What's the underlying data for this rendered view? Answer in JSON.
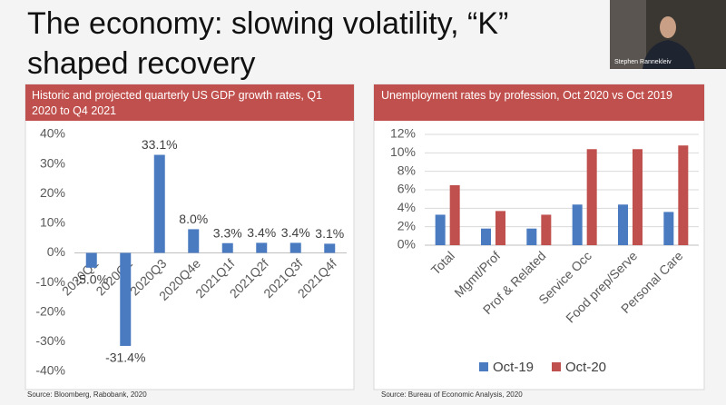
{
  "slide_title": "The economy: slowing volatility, “K” shaped recovery",
  "speaker": "Stephen Rannekleiv",
  "chart_data": [
    {
      "type": "bar",
      "title": "Historic and projected quarterly US GDP growth rates, Q1 2020 to Q4 2021",
      "categories": [
        "2020Q1",
        "2020Q2",
        "2020Q3",
        "2020Q4e",
        "2021Q1f",
        "2021Q2f",
        "2021Q3f",
        "2021Q4f"
      ],
      "values": [
        -5.0,
        -31.4,
        33.1,
        8.0,
        3.3,
        3.4,
        3.4,
        3.1
      ],
      "value_labels": [
        "-5.0%",
        "-31.4%",
        "33.1%",
        "8.0%",
        "3.3%",
        "3.4%",
        "3.4%",
        "3.1%"
      ],
      "color": "#4a7bc0",
      "ylim": [
        -40,
        40
      ],
      "yticks": [
        {
          "value": -40,
          "label": "-40%"
        },
        {
          "value": -30,
          "label": "-30%"
        },
        {
          "value": -20,
          "label": "-20%"
        },
        {
          "value": -10,
          "label": "-10%"
        },
        {
          "value": 0,
          "label": "0%"
        },
        {
          "value": 10,
          "label": "10%"
        },
        {
          "value": 20,
          "label": "20%"
        },
        {
          "value": 30,
          "label": "30%"
        },
        {
          "value": 40,
          "label": "40%"
        }
      ],
      "grid": false,
      "source": "Source: Bloomberg, Rabobank, 2020"
    },
    {
      "type": "bar",
      "title": "Unemployment rates by profession, Oct 2020 vs Oct 2019",
      "categories": [
        "Total",
        "Mgmt/Prof",
        "Prof & Related",
        "Service Occ",
        "Food prep/Serve",
        "Personal Care"
      ],
      "series": [
        {
          "name": "Oct-19",
          "color": "#4a7bc0",
          "values": [
            3.3,
            1.8,
            1.8,
            4.4,
            4.4,
            3.6
          ]
        },
        {
          "name": "Oct-20",
          "color": "#c0504d",
          "values": [
            6.5,
            3.7,
            3.3,
            10.4,
            10.4,
            10.8
          ]
        }
      ],
      "ylim": [
        0,
        12
      ],
      "yticks": [
        {
          "value": 0,
          "label": "0%"
        },
        {
          "value": 2,
          "label": "2%"
        },
        {
          "value": 4,
          "label": "4%"
        },
        {
          "value": 6,
          "label": "6%"
        },
        {
          "value": 8,
          "label": "8%"
        },
        {
          "value": 10,
          "label": "10%"
        },
        {
          "value": 12,
          "label": "12%"
        }
      ],
      "grid": true,
      "legend": "bottom",
      "source": "Source: Bureau of Economic Analysis, 2020"
    }
  ]
}
